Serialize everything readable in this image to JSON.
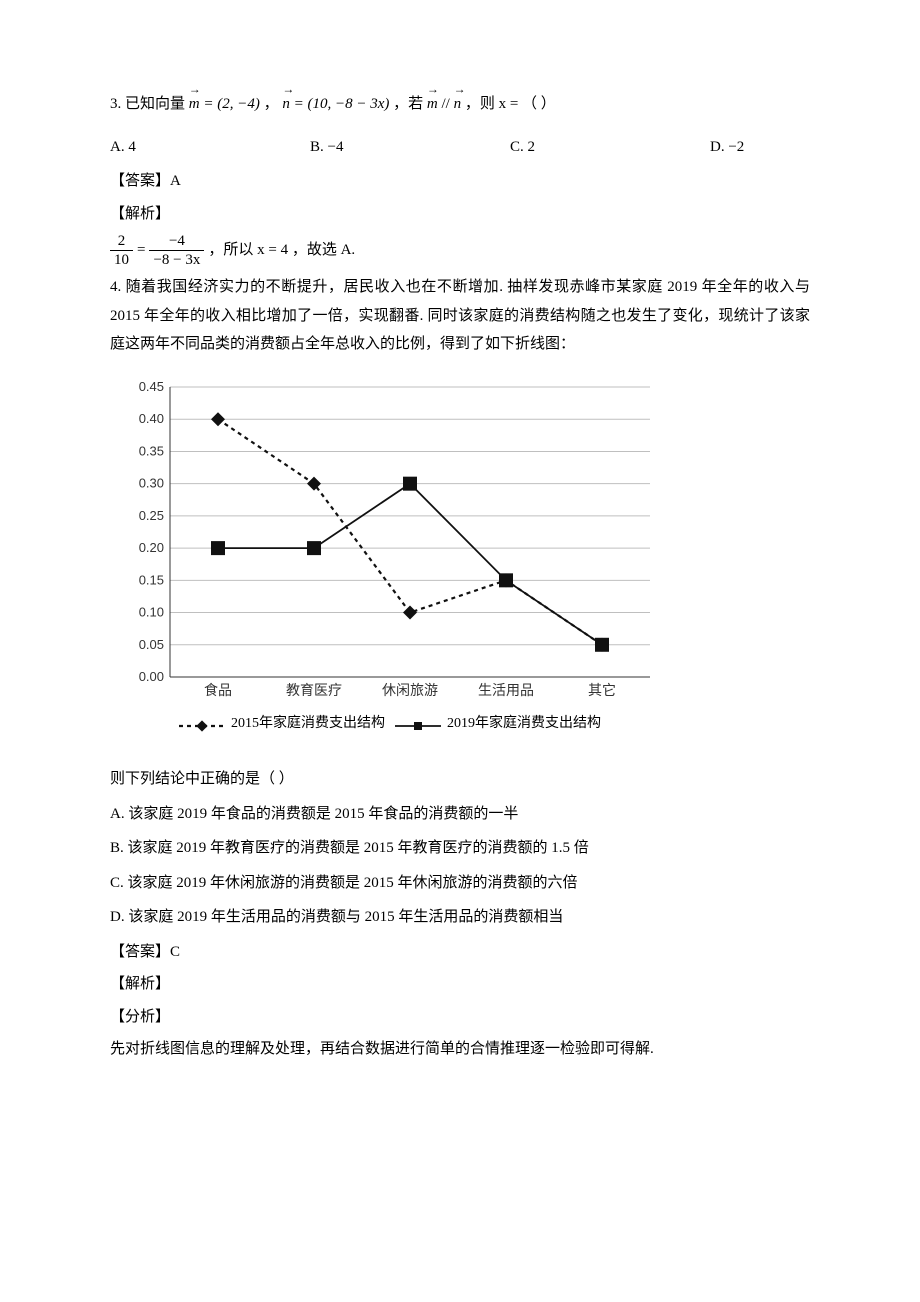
{
  "q3": {
    "prefix": "3.  已知向量 ",
    "m_eq": "= (2, −4)",
    "sep1": "，",
    "n_eq": "= (10, −8 − 3x)",
    "sep2": "，若 ",
    "parallel_text": " // ",
    "suffix": "，则 x = （    ）",
    "m_vec": "m",
    "n_vec": "n",
    "choices": {
      "A": "A.  4",
      "B": "B.  −4",
      "C": "C.  2",
      "D": "D.  −2"
    },
    "answer_label": "【答案】",
    "answer": "A",
    "solution_label": "【解析】",
    "frac_left_num": "2",
    "frac_left_den": "10",
    "eq_sign": " = ",
    "frac_right_num": "−4",
    "frac_right_den": "−8 − 3x",
    "solution_tail": "，所以 x = 4 ，故选 A."
  },
  "q4": {
    "prefix": "4.  随着我国经济实力的不断提升，居民收入也在不断增加. 抽样发现赤峰市某家庭 2019 年全年的收入与 2015 年全年的收入相比增加了一倍，实现翻番. 同时该家庭的消费结构随之也发生了变化，现统计了该家庭这两年不同品类的消费额占全年总收入的比例，得到了如下折线图：",
    "chart": {
      "type": "line",
      "background_color": "#ffffff",
      "grid_color": "#bfbfbf",
      "axis_color": "#333333",
      "categories": [
        "食品",
        "教育医疗",
        "休闲旅游",
        "生活用品",
        "其它"
      ],
      "ylim": [
        0,
        0.45
      ],
      "ytick_step": 0.05,
      "yticks": [
        "0.00",
        "0.05",
        "0.10",
        "0.15",
        "0.20",
        "0.25",
        "0.30",
        "0.35",
        "0.40",
        "0.45"
      ],
      "series": [
        {
          "name": "2015年家庭消费支出结构",
          "values": [
            0.4,
            0.3,
            0.1,
            0.15,
            0.05
          ],
          "marker": "diamond",
          "line_dash": "4,4",
          "line_width": 2.2,
          "color": "#111111"
        },
        {
          "name": "2019年家庭消费支出结构",
          "values": [
            0.2,
            0.2,
            0.3,
            0.15,
            0.05
          ],
          "marker": "square",
          "line_dash": "",
          "line_width": 1.8,
          "color": "#111111"
        }
      ],
      "label_fontsize": 14,
      "tick_fontsize": 13,
      "marker_size": 7
    },
    "tail_q": "则下列结论中正确的是（    ）",
    "options": {
      "A": "A.  该家庭 2019 年食品的消费额是 2015 年食品的消费额的一半",
      "B": "B.  该家庭 2019 年教育医疗的消费额是 2015 年教育医疗的消费额的 1.5 倍",
      "C": "C.  该家庭 2019 年休闲旅游的消费额是 2015 年休闲旅游的消费额的六倍",
      "D": "D.  该家庭 2019 年生活用品的消费额与 2015 年生活用品的消费额相当"
    },
    "answer_label": "【答案】",
    "answer": "C",
    "solution_label": "【解析】",
    "analysis_label": "【分析】",
    "analysis_text": "先对折线图信息的理解及处理，再结合数据进行简单的合情推理逐一检验即可得解."
  }
}
